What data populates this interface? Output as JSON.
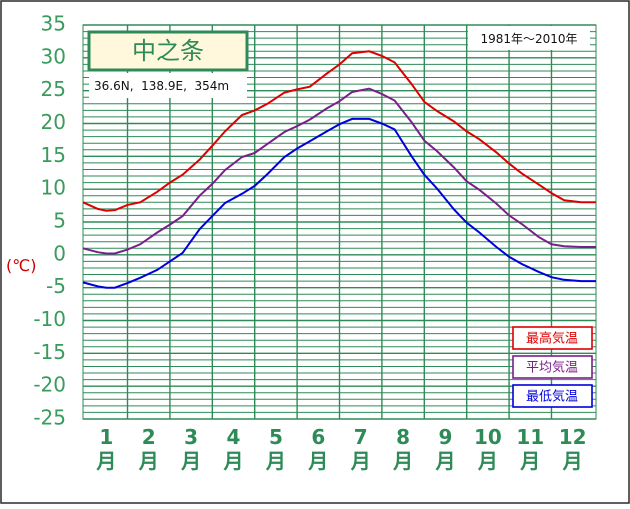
{
  "chart_data": {
    "type": "line",
    "title": "中之条",
    "subtitle": "36.6N,  138.9E,  354m",
    "period": "1981年〜2010年",
    "ylabel": "(℃)",
    "ylim": [
      -25,
      35
    ],
    "yticks": [
      "35",
      "30",
      "25",
      "20",
      "15",
      "10",
      "5",
      "0",
      "-5",
      "-10",
      "-15",
      "-20",
      "-25"
    ],
    "x_labels": [
      {
        "n": "1",
        "u": "月"
      },
      {
        "n": "2",
        "u": "月"
      },
      {
        "n": "3",
        "u": "月"
      },
      {
        "n": "4",
        "u": "月"
      },
      {
        "n": "5",
        "u": "月"
      },
      {
        "n": "6",
        "u": "月"
      },
      {
        "n": "7",
        "u": "月"
      },
      {
        "n": "8",
        "u": "月"
      },
      {
        "n": "9",
        "u": "月"
      },
      {
        "n": "10",
        "u": "月"
      },
      {
        "n": "11",
        "u": "月"
      },
      {
        "n": "12",
        "u": "月"
      }
    ],
    "x_range": [
      0.45,
      12.55
    ],
    "grid": true,
    "legend_position": "bottom-right",
    "series": [
      {
        "name": "最高気温",
        "color": "#dd0000",
        "x": [
          0.45,
          0.8,
          1.0,
          1.2,
          1.5,
          1.8,
          2.2,
          2.5,
          2.8,
          3.2,
          3.5,
          3.8,
          4.2,
          4.5,
          4.8,
          5.2,
          5.5,
          5.8,
          6.2,
          6.5,
          6.8,
          7.2,
          7.5,
          7.8,
          8.2,
          8.5,
          8.8,
          9.2,
          9.5,
          9.8,
          10.2,
          10.5,
          10.8,
          11.2,
          11.5,
          11.8,
          12.2,
          12.55
        ],
        "y": [
          8.0,
          7.0,
          6.7,
          6.8,
          7.6,
          8.0,
          9.6,
          11.0,
          12.2,
          14.5,
          16.6,
          18.8,
          21.3,
          22.0,
          23.0,
          24.7,
          25.2,
          25.6,
          27.6,
          29.0,
          30.7,
          31.0,
          30.3,
          29.3,
          26.0,
          23.3,
          21.9,
          20.3,
          18.8,
          17.6,
          15.6,
          13.9,
          12.4,
          10.7,
          9.4,
          8.3,
          8.0,
          8.0
        ]
      },
      {
        "name": "平均気温",
        "color": "#7a1f8a",
        "x": [
          0.45,
          0.8,
          1.0,
          1.2,
          1.5,
          1.8,
          2.2,
          2.5,
          2.8,
          3.2,
          3.5,
          3.8,
          4.2,
          4.5,
          4.8,
          5.2,
          5.5,
          5.8,
          6.2,
          6.5,
          6.8,
          7.2,
          7.5,
          7.8,
          8.2,
          8.5,
          8.8,
          9.2,
          9.5,
          9.8,
          10.2,
          10.5,
          10.8,
          11.2,
          11.5,
          11.8,
          12.2,
          12.55
        ],
        "y": [
          1.0,
          0.4,
          0.2,
          0.2,
          0.8,
          1.6,
          3.4,
          4.6,
          5.9,
          9.0,
          10.8,
          12.9,
          14.9,
          15.5,
          16.9,
          18.7,
          19.6,
          20.6,
          22.3,
          23.4,
          24.8,
          25.3,
          24.5,
          23.5,
          20.2,
          17.4,
          15.8,
          13.3,
          11.2,
          9.9,
          7.8,
          6.0,
          4.7,
          2.7,
          1.6,
          1.3,
          1.2,
          1.2
        ]
      },
      {
        "name": "最低気温",
        "color": "#0000dd",
        "x": [
          0.45,
          0.8,
          1.0,
          1.2,
          1.5,
          1.8,
          2.2,
          2.5,
          2.8,
          3.2,
          3.5,
          3.8,
          4.2,
          4.5,
          4.8,
          5.2,
          5.5,
          5.8,
          6.2,
          6.5,
          6.8,
          7.2,
          7.5,
          7.8,
          8.2,
          8.5,
          8.8,
          9.2,
          9.5,
          9.8,
          10.2,
          10.5,
          10.8,
          11.2,
          11.5,
          11.8,
          12.2,
          12.55
        ],
        "y": [
          -4.2,
          -4.8,
          -5.0,
          -5.0,
          -4.3,
          -3.5,
          -2.3,
          -1.0,
          0.3,
          3.9,
          5.9,
          7.9,
          9.3,
          10.5,
          12.3,
          14.9,
          16.2,
          17.3,
          18.8,
          19.9,
          20.7,
          20.7,
          20.0,
          19.1,
          15.0,
          12.2,
          10.1,
          6.9,
          4.9,
          3.4,
          1.2,
          -0.3,
          -1.4,
          -2.6,
          -3.4,
          -3.8,
          -4.0,
          -4.0
        ]
      }
    ]
  }
}
